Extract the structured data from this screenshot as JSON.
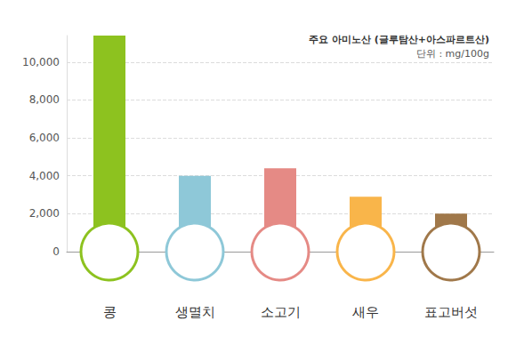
{
  "chart_data": {
    "type": "bar",
    "title": "주요 아미노산 (글루탐산+아스파르트산)",
    "subtitle": "단위 : mg/100g",
    "categories": [
      "콩",
      "생멸치",
      "소고기",
      "새우",
      "표고버섯"
    ],
    "values": [
      11400,
      4000,
      4400,
      2900,
      2000
    ],
    "colors": [
      "#8dc21f",
      "#8ec8d8",
      "#e58a85",
      "#f9b54a",
      "#a0784a"
    ],
    "ylim": [
      0,
      11400
    ],
    "yticks": [
      0,
      {
        "value": 2000,
        "label": "2,000"
      },
      {
        "value": 4000,
        "label": "4,000"
      },
      {
        "value": 6000,
        "label": "6,000"
      },
      {
        "value": 8000,
        "label": "8,000"
      },
      {
        "value": 10000,
        "label": "10,000"
      }
    ],
    "grid": true
  }
}
